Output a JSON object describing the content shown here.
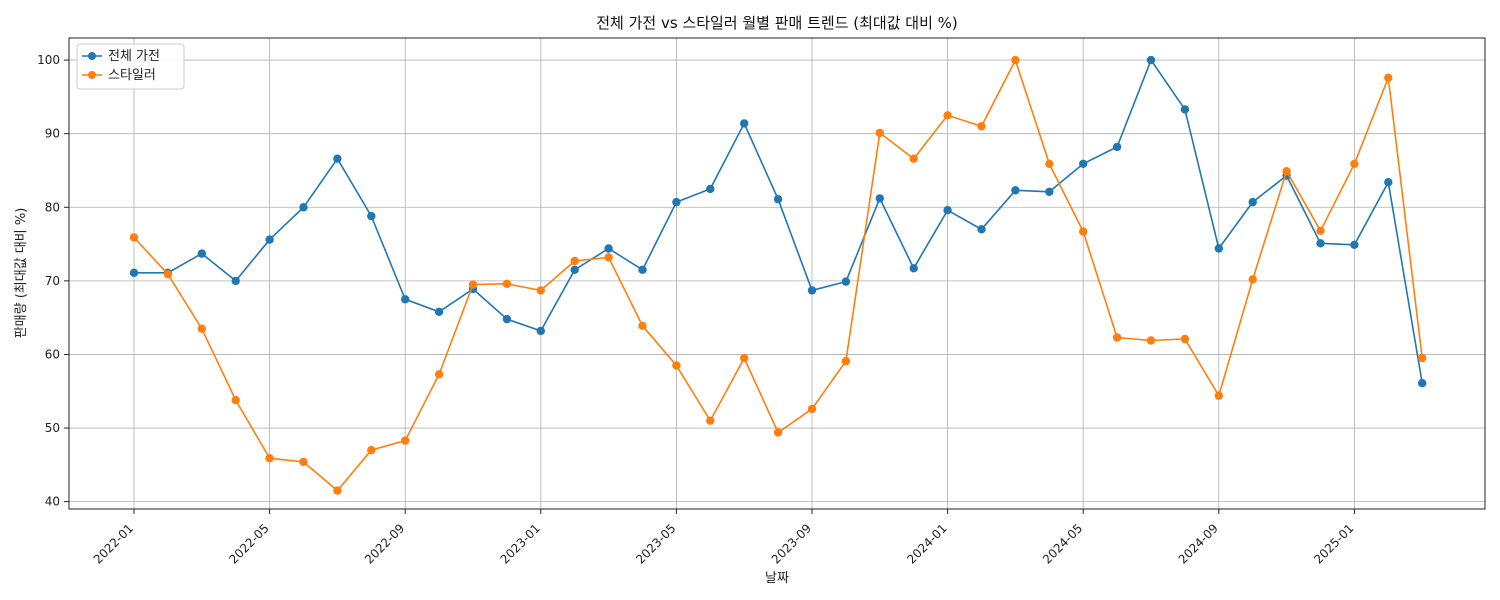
{
  "chart_data": {
    "type": "line",
    "title": "전체 가전 vs 스타일러 월별 판매 트렌드 (최대값 대비 %)",
    "xlabel": "날짜",
    "ylabel": "판매량 (최대값 대비 %)",
    "ylim": [
      39,
      103
    ],
    "yticks": [
      40,
      50,
      60,
      70,
      80,
      90,
      100
    ],
    "xticks": [
      "2022-01",
      "2022-05",
      "2022-09",
      "2023-01",
      "2023-05",
      "2023-09",
      "2024-01",
      "2024-05",
      "2024-09",
      "2025-01"
    ],
    "grid": true,
    "legend_position": "top-left",
    "x": [
      "2022-01",
      "2022-02",
      "2022-03",
      "2022-04",
      "2022-05",
      "2022-06",
      "2022-07",
      "2022-08",
      "2022-09",
      "2022-10",
      "2022-11",
      "2022-12",
      "2023-01",
      "2023-02",
      "2023-03",
      "2023-04",
      "2023-05",
      "2023-06",
      "2023-07",
      "2023-08",
      "2023-09",
      "2023-10",
      "2023-11",
      "2023-12",
      "2024-01",
      "2024-02",
      "2024-03",
      "2024-04",
      "2024-05",
      "2024-06",
      "2024-07",
      "2024-08",
      "2024-09",
      "2024-10",
      "2024-11",
      "2024-12",
      "2025-01",
      "2025-02",
      "2025-03"
    ],
    "series": [
      {
        "name": "전체 가전",
        "color": "#1f77b4",
        "values": [
          71.1,
          71.1,
          73.7,
          70.0,
          75.6,
          80.0,
          86.6,
          78.8,
          67.5,
          65.8,
          68.9,
          64.8,
          63.2,
          71.5,
          74.4,
          71.5,
          80.7,
          82.5,
          91.4,
          81.1,
          68.7,
          69.9,
          81.2,
          71.7,
          79.6,
          77.0,
          82.3,
          82.1,
          85.9,
          88.2,
          100.0,
          93.3,
          74.4,
          80.7,
          84.3,
          75.1,
          74.9,
          83.4,
          56.1
        ]
      },
      {
        "name": "스타일러",
        "color": "#ff7f0e",
        "values": [
          75.9,
          70.9,
          63.5,
          53.8,
          45.9,
          45.4,
          41.5,
          47.0,
          48.3,
          57.3,
          69.5,
          69.6,
          68.7,
          72.7,
          73.2,
          63.9,
          58.5,
          51.0,
          59.5,
          49.4,
          52.6,
          59.1,
          90.1,
          86.6,
          92.5,
          91.0,
          100.0,
          85.9,
          76.7,
          62.3,
          61.9,
          62.1,
          54.4,
          70.2,
          84.9,
          76.8,
          85.9,
          97.6,
          59.5
        ]
      }
    ]
  }
}
